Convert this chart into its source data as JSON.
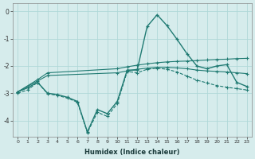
{
  "xlabel": "Humidex (Indice chaleur)",
  "background_color": "#d6ecec",
  "grid_color": "#b0d8d8",
  "line_color": "#1f7a72",
  "xlim": [
    -0.5,
    23.5
  ],
  "ylim": [
    -4.6,
    0.3
  ],
  "yticks": [
    0,
    -1,
    -2,
    -3,
    -4
  ],
  "xticks": [
    0,
    1,
    2,
    3,
    4,
    5,
    6,
    7,
    8,
    9,
    10,
    11,
    12,
    13,
    14,
    15,
    16,
    17,
    18,
    19,
    20,
    21,
    22,
    23
  ],
  "s1_x": [
    0,
    1,
    2,
    3,
    4,
    5,
    6,
    7,
    8,
    9,
    10,
    11,
    12,
    13,
    14,
    15,
    16,
    17,
    18,
    19,
    20,
    21,
    22,
    23
  ],
  "s1_y": [
    -2.95,
    -2.8,
    -2.6,
    -3.0,
    -3.05,
    -3.15,
    -3.3,
    -4.42,
    -3.6,
    -3.75,
    -3.3,
    -2.15,
    -2.15,
    -0.55,
    -0.12,
    -0.52,
    -1.02,
    -1.55,
    -2.0,
    -2.1,
    -2.0,
    -1.95,
    -2.6,
    -2.75
  ],
  "s2_x": [
    0,
    1,
    2,
    3,
    4,
    5,
    6,
    7,
    8,
    9,
    10,
    11,
    12,
    13,
    14,
    15,
    16,
    17,
    18,
    19,
    20,
    21,
    22,
    23
  ],
  "s2_y": [
    -3.0,
    -2.88,
    -2.6,
    -3.02,
    -3.08,
    -3.18,
    -3.33,
    -4.45,
    -3.7,
    -3.85,
    -3.38,
    -2.2,
    -2.25,
    -2.12,
    -2.08,
    -2.12,
    -2.22,
    -2.37,
    -2.52,
    -2.62,
    -2.72,
    -2.78,
    -2.83,
    -2.88
  ],
  "s3_x": [
    0,
    2,
    3,
    10,
    11,
    12,
    13,
    14,
    15,
    16,
    17,
    18,
    19,
    20,
    21,
    22,
    23
  ],
  "s3_y": [
    -2.95,
    -2.55,
    -2.35,
    -2.25,
    -2.18,
    -2.12,
    -2.08,
    -2.05,
    -2.05,
    -2.07,
    -2.1,
    -2.15,
    -2.18,
    -2.2,
    -2.22,
    -2.25,
    -2.28
  ],
  "s4_x": [
    0,
    2,
    3,
    10,
    11,
    12,
    13,
    14,
    15,
    16,
    17,
    18,
    19,
    20,
    21,
    22,
    23
  ],
  "s4_y": [
    -2.95,
    -2.5,
    -2.25,
    -2.1,
    -2.03,
    -1.97,
    -1.92,
    -1.88,
    -1.85,
    -1.83,
    -1.82,
    -1.8,
    -1.78,
    -1.76,
    -1.75,
    -1.73,
    -1.72
  ]
}
